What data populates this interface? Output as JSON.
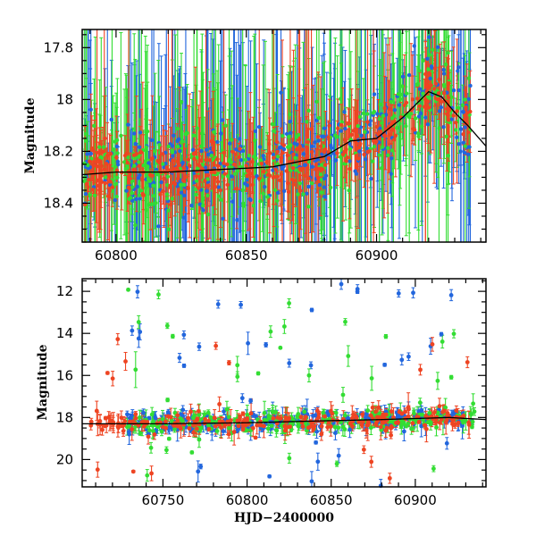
{
  "chart_data": [
    {
      "type": "scatter",
      "panel": "top",
      "title": "",
      "xlabel": "",
      "ylabel": "Magnitude",
      "xlim": [
        60787,
        60942
      ],
      "ylim": [
        18.55,
        17.73
      ],
      "y_inverted": true,
      "grid": false,
      "xticks": [
        60800,
        60850,
        60900
      ],
      "yticks": [
        17.8,
        18,
        18.2,
        18.4
      ],
      "ytick_labels": [
        "17.8",
        "18",
        "18.2",
        "18.4"
      ],
      "error_bars": true,
      "series": [
        {
          "color": "#2266dd"
        },
        {
          "color": "#33dd33"
        },
        {
          "color": "#ee4422"
        }
      ],
      "trend": {
        "color": "#000000",
        "x": [
          60787,
          60800,
          60820,
          60840,
          60860,
          60880,
          60890,
          60900,
          60910,
          60920,
          60925,
          60930,
          60935,
          60942
        ],
        "y": [
          18.29,
          18.28,
          18.28,
          18.27,
          18.26,
          18.22,
          18.16,
          18.15,
          18.07,
          17.97,
          17.99,
          18.05,
          18.1,
          18.18
        ]
      }
    },
    {
      "type": "scatter",
      "panel": "bottom",
      "title": "",
      "xlabel": "HJD−2400000",
      "ylabel": "Magnitude",
      "xlim": [
        60702,
        60942
      ],
      "ylim": [
        21.3,
        11.4
      ],
      "y_inverted": true,
      "grid": false,
      "xticks": [
        60750,
        60800,
        60850,
        60900
      ],
      "yticks": [
        12,
        14,
        16,
        18,
        20
      ],
      "ytick_labels": [
        "12",
        "14",
        "16",
        "18",
        "20"
      ],
      "error_bars": true,
      "series": [
        {
          "color": "#2266dd"
        },
        {
          "color": "#33dd33"
        },
        {
          "color": "#ee4422"
        }
      ],
      "trend": {
        "color": "#000000",
        "x": [
          60702,
          60750,
          60800,
          60850,
          60880,
          60900,
          60920,
          60942
        ],
        "y": [
          18.3,
          18.3,
          18.25,
          18.15,
          18.1,
          18.05,
          18.0,
          18.1
        ]
      }
    }
  ]
}
